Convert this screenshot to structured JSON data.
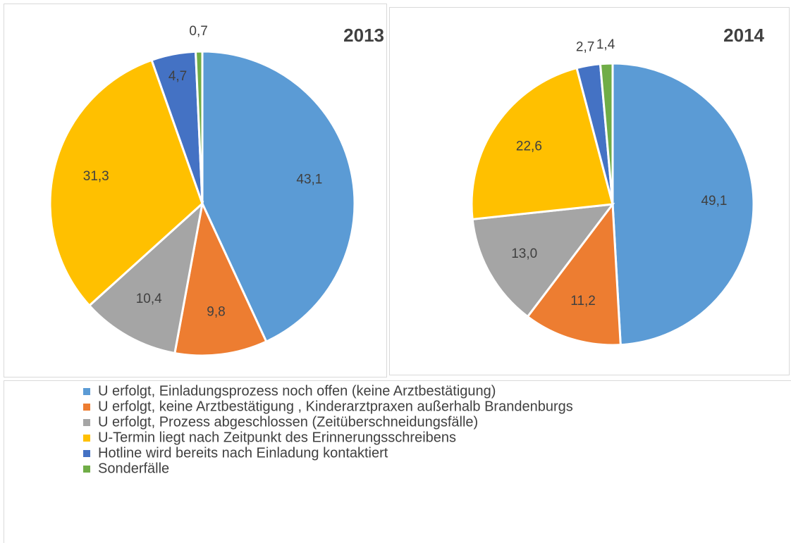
{
  "chart_data": [
    {
      "type": "pie",
      "title": "2013",
      "values": [
        43.1,
        9.8,
        10.4,
        31.3,
        4.7,
        0.7
      ],
      "value_labels": [
        "43,1",
        "9,8",
        "10,4",
        "31,3",
        "4,7",
        "0,7"
      ]
    },
    {
      "type": "pie",
      "title": "2014",
      "values": [
        49.1,
        11.2,
        13.0,
        22.6,
        2.7,
        1.4
      ],
      "value_labels": [
        "49,1",
        "11,2",
        "13,0",
        "22,6",
        "2,7",
        "1,4"
      ]
    }
  ],
  "legend": {
    "names": [
      "U erfolgt, Einladungsprozess noch offen (keine Arztbestätigung)",
      "U erfolgt, keine Arztbestätigung , Kinderarztpraxen außerhalb Brandenburgs",
      "U erfolgt, Prozess abgeschlossen (Zeitüberschneidungsfälle)",
      "U-Termin liegt nach Zeitpunkt des Erinnerungsschreibens",
      "Hotline wird bereits nach Einladung kontaktiert",
      "Sonderfälle"
    ],
    "colors": [
      "#5b9bd5",
      "#ed7d31",
      "#a5a5a5",
      "#ffc000",
      "#4472c4",
      "#70ad47"
    ]
  }
}
